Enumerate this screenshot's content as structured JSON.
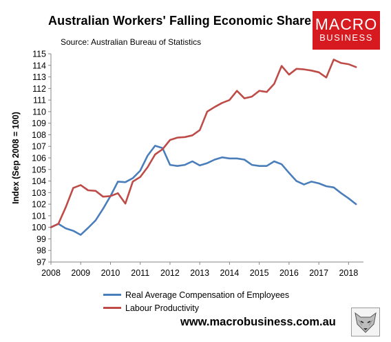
{
  "header": {
    "title": "Australian Workers' Falling Economic Share",
    "source": "Source: Australian Bureau of Statistics"
  },
  "logo": {
    "line1": "MACRO",
    "line2": "BUSINESS",
    "color": "#d71920"
  },
  "footer": {
    "url": "www.macrobusiness.com.au"
  },
  "chart_data": {
    "type": "line",
    "title": "Australian Workers' Falling Economic Share",
    "subtitle": "Source: Australian Bureau of Statistics",
    "ylabel": "Index (Sep 2008 = 100)",
    "xlabel": "",
    "xlim": [
      2008,
      2018.5
    ],
    "ylim": [
      97,
      115
    ],
    "x_ticks": [
      "2008",
      "2009",
      "2010",
      "2011",
      "2012",
      "2013",
      "2014",
      "2015",
      "2016",
      "2017",
      "2018"
    ],
    "y_ticks": [
      "97",
      "98",
      "99",
      "100",
      "101",
      "102",
      "103",
      "104",
      "105",
      "106",
      "107",
      "108",
      "109",
      "110",
      "111",
      "112",
      "113",
      "114",
      "115"
    ],
    "grid": false,
    "legend": "bottom",
    "series": [
      {
        "name": "Real Average Compensation of Employees",
        "color": "#4a7ebb",
        "x": [
          2008.0,
          2008.25,
          2008.5,
          2008.75,
          2009.0,
          2009.25,
          2009.5,
          2009.75,
          2010.0,
          2010.25,
          2010.5,
          2010.75,
          2011.0,
          2011.25,
          2011.5,
          2011.75,
          2012.0,
          2012.25,
          2012.5,
          2012.75,
          2013.0,
          2013.25,
          2013.5,
          2013.75,
          2014.0,
          2014.25,
          2014.5,
          2014.75,
          2015.0,
          2015.25,
          2015.5,
          2015.75,
          2016.0,
          2016.25,
          2016.5,
          2016.75,
          2017.0,
          2017.25,
          2017.5,
          2017.75,
          2018.0,
          2018.25
        ],
        "values": [
          100.0,
          100.3,
          99.9,
          99.7,
          99.35,
          99.95,
          100.6,
          101.6,
          102.7,
          103.95,
          103.9,
          104.25,
          104.9,
          106.2,
          107.05,
          106.85,
          105.4,
          105.3,
          105.4,
          105.7,
          105.35,
          105.55,
          105.85,
          106.05,
          105.95,
          105.95,
          105.85,
          105.4,
          105.3,
          105.3,
          105.7,
          105.45,
          104.7,
          104.0,
          103.7,
          103.95,
          103.8,
          103.55,
          103.45,
          102.95,
          102.5,
          102.0
        ]
      },
      {
        "name": "Labour Productivity",
        "color": "#be4b48",
        "x": [
          2008.0,
          2008.25,
          2008.5,
          2008.75,
          2009.0,
          2009.25,
          2009.5,
          2009.75,
          2010.0,
          2010.25,
          2010.5,
          2010.75,
          2011.0,
          2011.25,
          2011.5,
          2011.75,
          2012.0,
          2012.25,
          2012.5,
          2012.75,
          2013.0,
          2013.25,
          2013.5,
          2013.75,
          2014.0,
          2014.25,
          2014.5,
          2014.75,
          2015.0,
          2015.25,
          2015.5,
          2015.75,
          2016.0,
          2016.25,
          2016.5,
          2016.75,
          2017.0,
          2017.25,
          2017.5,
          2017.75,
          2018.0,
          2018.25
        ],
        "values": [
          100.0,
          100.3,
          101.75,
          103.4,
          103.65,
          103.2,
          103.15,
          102.65,
          102.7,
          102.95,
          102.05,
          103.95,
          104.35,
          105.2,
          106.3,
          106.75,
          107.55,
          107.75,
          107.8,
          107.95,
          108.4,
          110.0,
          110.4,
          110.75,
          111.0,
          111.8,
          111.15,
          111.3,
          111.8,
          111.7,
          112.4,
          113.95,
          113.2,
          113.7,
          113.65,
          113.55,
          113.4,
          112.95,
          114.5,
          114.2,
          114.1,
          113.85
        ]
      }
    ]
  }
}
